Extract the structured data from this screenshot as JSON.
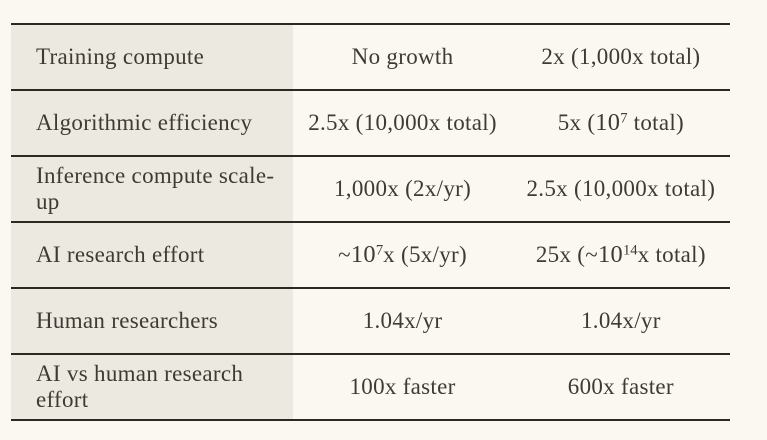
{
  "page": {
    "background": "#faf8f1"
  },
  "table": {
    "style": {
      "label_col_bg": "#ece9e1",
      "border_color": "#2c2924",
      "text_color": "#3f3a33"
    },
    "rows": [
      {
        "label": "Training compute",
        "cells": [
          [
            "No growth"
          ],
          [
            "2x (1,000x total)"
          ]
        ]
      },
      {
        "label": "Algorithmic efficiency",
        "cells": [
          [
            "2.5x (10,000x total)"
          ],
          [
            "5x (",
            [
              "10",
              "7"
            ],
            " total)"
          ]
        ]
      },
      {
        "label": "Inference compute scale-up",
        "cells": [
          [
            "1,000x (2x/yr)"
          ],
          [
            "2.5x (10,000x total)"
          ]
        ]
      },
      {
        "label": "AI research effort",
        "cells": [
          [
            "~",
            [
              "10",
              "7"
            ],
            "x (5x/yr)"
          ],
          [
            "25x (~",
            [
              "10",
              "14"
            ],
            "x total)"
          ]
        ]
      },
      {
        "label": "Human researchers",
        "cells": [
          [
            "1.04x/yr"
          ],
          [
            "1.04x/yr"
          ]
        ]
      },
      {
        "label": "AI vs human research effort",
        "cells": [
          [
            "100x faster"
          ],
          [
            "600x faster"
          ]
        ]
      }
    ]
  },
  "chart_data": {
    "type": "table",
    "title": "",
    "has_header_row": false,
    "column_count": 3,
    "rows": [
      [
        "Training compute",
        "No growth",
        "2x (1,000x total)"
      ],
      [
        "Algorithmic efficiency",
        "2.5x (10,000x total)",
        "5x (10^7 total)"
      ],
      [
        "Inference compute scale-up",
        "1,000x (2x/yr)",
        "2.5x (10,000x total)"
      ],
      [
        "AI research effort",
        "~10^7x (5x/yr)",
        "25x (~10^14x total)"
      ],
      [
        "Human researchers",
        "1.04x/yr",
        "1.04x/yr"
      ],
      [
        "AI vs human research effort",
        "100x faster",
        "600x faster"
      ]
    ]
  }
}
